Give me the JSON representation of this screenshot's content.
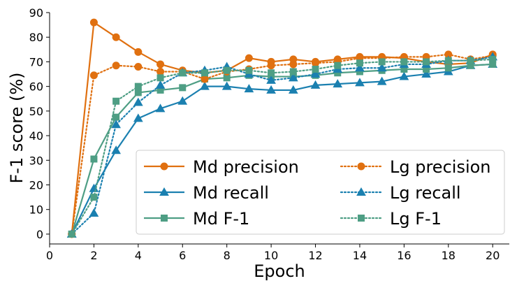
{
  "chart_data": {
    "type": "line",
    "xlabel": "Epoch",
    "ylabel": "F-1 score (%)",
    "xlim": [
      0,
      20.75
    ],
    "ylim": [
      -4,
      90
    ],
    "xticks": [
      0,
      2,
      4,
      6,
      8,
      10,
      12,
      14,
      16,
      18,
      20
    ],
    "yticks": [
      0,
      10,
      20,
      30,
      40,
      50,
      60,
      70,
      80,
      90
    ],
    "grid": false,
    "legend_location": "lower-right",
    "legend_columns": 2,
    "x": [
      1,
      2,
      3,
      4,
      5,
      6,
      7,
      8,
      9,
      10,
      11,
      12,
      13,
      14,
      15,
      16,
      17,
      18,
      19,
      20
    ],
    "series": [
      {
        "name": "Md precision",
        "color": "#E07010",
        "linestyle": "solid",
        "marker": "circle",
        "values": [
          0,
          86,
          80,
          74,
          69,
          66.5,
          65.5,
          66.5,
          71.5,
          70,
          71,
          70,
          71,
          72,
          72,
          71.5,
          70,
          69,
          69.5,
          73
        ]
      },
      {
        "name": "Md recall",
        "color": "#1B80B0",
        "linestyle": "solid",
        "marker": "triangle",
        "values": [
          0,
          18.5,
          34,
          47,
          51,
          54,
          60,
          60,
          59,
          58.5,
          58.5,
          60.5,
          61,
          61.5,
          62,
          64,
          65,
          66,
          68.5,
          69
        ]
      },
      {
        "name": "Md F-1",
        "color": "#4E9E84",
        "linestyle": "solid",
        "marker": "square",
        "values": [
          0,
          30.5,
          47.5,
          57.5,
          58.5,
          59.5,
          63,
          63.5,
          64.5,
          64,
          64,
          64.5,
          65.5,
          66,
          66.5,
          67,
          67,
          67.5,
          68.5,
          69
        ]
      },
      {
        "name": "Lg precision",
        "color": "#E07010",
        "linestyle": "dotted",
        "marker": "circle",
        "values": [
          0,
          64.5,
          68.5,
          68,
          66,
          66,
          63,
          66,
          67,
          68.5,
          69,
          69.5,
          70,
          71.5,
          71.5,
          72,
          72,
          73,
          71,
          72.5
        ]
      },
      {
        "name": "Lg recall",
        "color": "#1B80B0",
        "linestyle": "dotted",
        "marker": "triangle",
        "values": [
          0,
          8.5,
          44.5,
          53.5,
          60.5,
          65.5,
          66.5,
          68,
          65,
          62.5,
          63.5,
          65,
          67,
          67.5,
          67.5,
          69,
          69,
          70.5,
          70.5,
          72
        ]
      },
      {
        "name": "Lg F-1",
        "color": "#4E9E84",
        "linestyle": "dotted",
        "marker": "square",
        "values": [
          0,
          15,
          54,
          60,
          63.5,
          65.5,
          65.5,
          66.5,
          66.5,
          65.5,
          66,
          67,
          68.5,
          69.5,
          70,
          70,
          70,
          70.5,
          70.5,
          71
        ]
      }
    ]
  }
}
